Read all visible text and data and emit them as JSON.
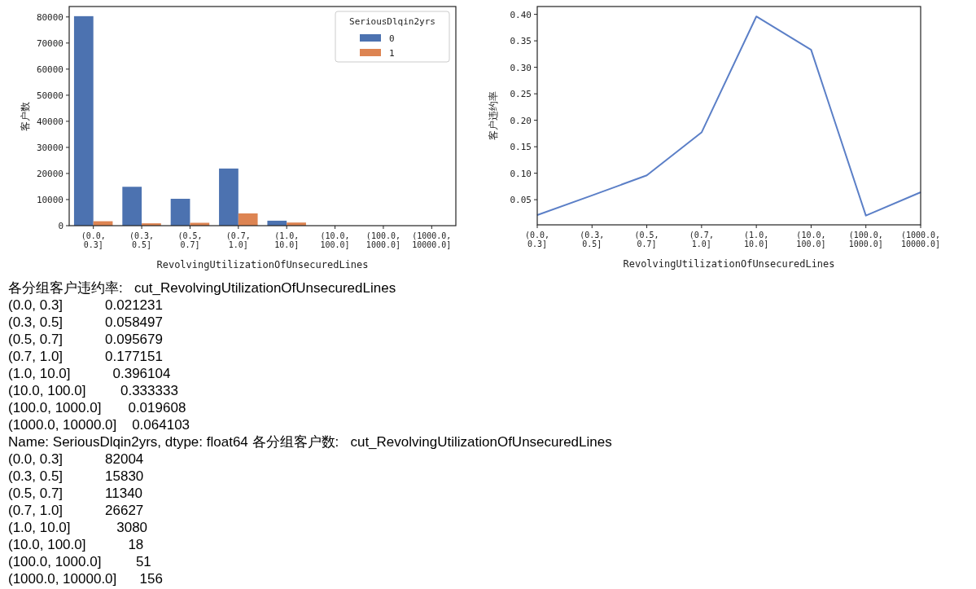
{
  "chart_data": [
    {
      "type": "bar",
      "xlabel": "RevolvingUtilizationOfUnsecuredLines",
      "ylabel": "客户数",
      "legend_title": "SeriousDlqin2yrs",
      "legend": "top right",
      "grid": false,
      "categories": [
        "(0.0, 0.3]",
        "(0.3, 0.5]",
        "(0.5, 0.7]",
        "(0.7, 1.0]",
        "(1.0, 10.0]",
        "(10.0, 100.0]",
        "(100.0, 1000.0]",
        "(1000.0, 10000.0]"
      ],
      "ylim": [
        0,
        84000
      ],
      "yticks": [
        0,
        10000,
        20000,
        30000,
        40000,
        50000,
        60000,
        70000,
        80000
      ],
      "series": [
        {
          "name": "0",
          "color": "#4c72b0",
          "values": [
            80300,
            14900,
            10300,
            21900,
            1900,
            null,
            null,
            null
          ]
        },
        {
          "name": "1",
          "color": "#dd8452",
          "values": [
            1700,
            900,
            1100,
            4700,
            1200,
            null,
            null,
            null
          ]
        }
      ]
    },
    {
      "type": "line",
      "xlabel": "RevolvingUtilizationOfUnsecuredLines",
      "ylabel": "客户违约率",
      "grid": false,
      "categories": [
        "(0.0, 0.3]",
        "(0.3, 0.5]",
        "(0.5, 0.7]",
        "(0.7, 1.0]",
        "(1.0, 10.0]",
        "(10.0, 100.0]",
        "(100.0, 1000.0]",
        "(1000.0, 10000.0]"
      ],
      "ylim": [
        0.0025,
        0.4148
      ],
      "yticks": [
        {
          "value": 0.05,
          "label": "0.05"
        },
        {
          "value": 0.1,
          "label": "0.10"
        },
        {
          "value": 0.15,
          "label": "0.15"
        },
        {
          "value": 0.2,
          "label": "0.20"
        },
        {
          "value": 0.25,
          "label": "0.25"
        },
        {
          "value": 0.3,
          "label": "0.30"
        },
        {
          "value": 0.35,
          "label": "0.35"
        },
        {
          "value": 0.4,
          "label": "0.40"
        }
      ],
      "series": [
        {
          "color": "#5b7fc7",
          "values": [
            0.021,
            0.058,
            0.096,
            0.177,
            0.396,
            0.333,
            0.02,
            0.064
          ]
        }
      ]
    },
    {
      "type": "other",
      "annotations": [
        "各分组客户违约率:   cut_RevolvingUtilizationOfUnsecuredLines",
        "(0.0, 0.3]           0.021231",
        "(0.3, 0.5]           0.058497",
        "(0.5, 0.7]           0.095679",
        "(0.7, 1.0]           0.177151",
        "(1.0, 10.0]           0.396104",
        "(10.0, 100.0]         0.333333",
        "(100.0, 1000.0]       0.019608",
        "(1000.0, 10000.0]    0.064103",
        "Name: SeriousDlqin2yrs, dtype: float64 各分组客户数:   cut_RevolvingUtilizationOfUnsecuredLines",
        "(0.0, 0.3]           82004",
        "(0.3, 0.5]           15830",
        "(0.5, 0.7]           11340",
        "(0.7, 1.0]           26627",
        "(1.0, 10.0]            3080",
        "(10.0, 100.0]           18",
        "(100.0, 1000.0]         51",
        "(1000.0, 10000.0]      156"
      ]
    }
  ]
}
